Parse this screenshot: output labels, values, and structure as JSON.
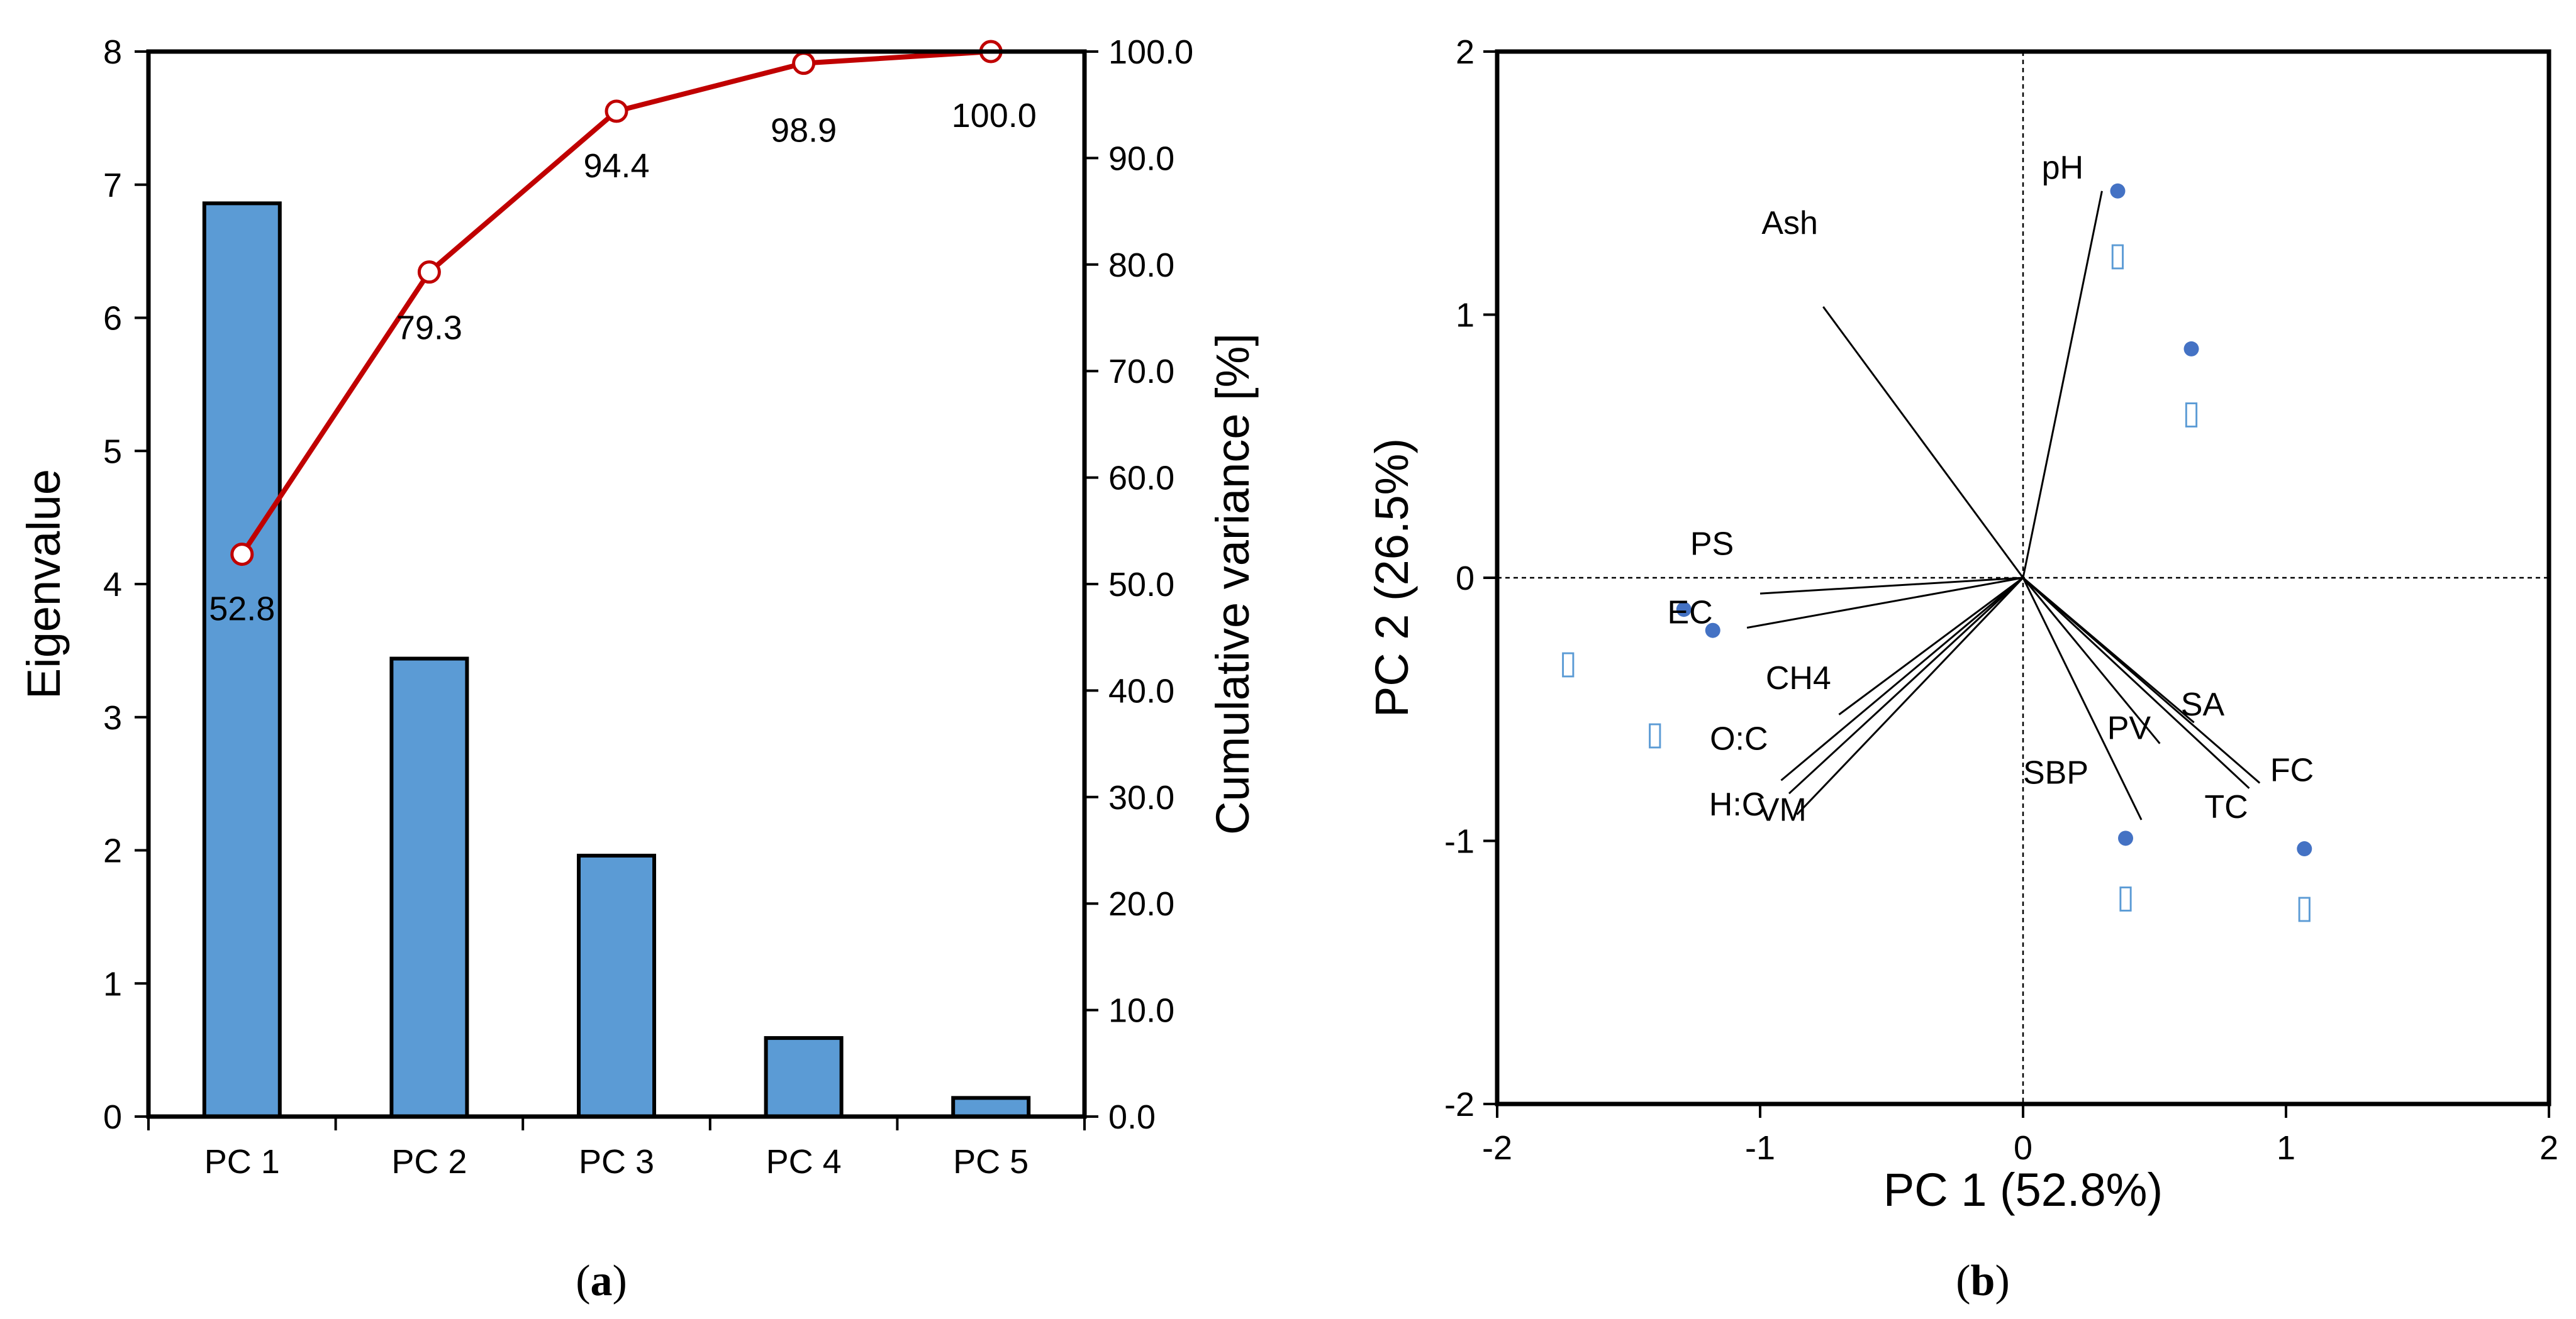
{
  "chart_data": [
    {
      "type": "bar",
      "panel_caption": {
        "open": "(",
        "letter": "a",
        "close": ")"
      },
      "categories": [
        "PC 1",
        "PC 2",
        "PC 3",
        "PC 4",
        "PC 5"
      ],
      "series": [
        {
          "name": "Eigenvalue",
          "axis": "left",
          "values": [
            6.86,
            3.44,
            1.96,
            0.59,
            0.14
          ],
          "color": "#5b9bd5"
        },
        {
          "name": "Cumulative variance",
          "type": "line",
          "axis": "right",
          "values": [
            52.8,
            79.3,
            94.4,
            98.9,
            100.0
          ],
          "labels": [
            "52.8",
            "79.3",
            "94.4",
            "98.9",
            "100.0"
          ],
          "color": "#c00000"
        }
      ],
      "ylabel": "Eigenvalue",
      "y2label": "Cumulative variance [%]",
      "ylim": [
        0,
        8
      ],
      "y2lim": [
        0,
        100
      ],
      "yticks": [
        "0",
        "1",
        "2",
        "3",
        "4",
        "5",
        "6",
        "7",
        "8"
      ],
      "y2ticks": [
        "0.0",
        "10.0",
        "20.0",
        "30.0",
        "40.0",
        "50.0",
        "60.0",
        "70.0",
        "80.0",
        "90.0",
        "100.0"
      ]
    },
    {
      "type": "scatter",
      "subtype": "biplot",
      "panel_caption": {
        "open": "(",
        "letter": "b",
        "close": ")"
      },
      "xlabel": "PC 1 (52.8%)",
      "ylabel": "PC 2 (26.5%)",
      "xlim": [
        -2,
        2
      ],
      "ylim": [
        -2,
        2
      ],
      "xticks": [
        "-2",
        "-1",
        "0",
        "1",
        "2"
      ],
      "yticks": [
        "-2",
        "-1",
        "0",
        "1",
        "2"
      ],
      "loadings": [
        {
          "label": "pH",
          "x": 0.3,
          "y": 1.47
        },
        {
          "label": "Ash",
          "x": -0.76,
          "y": 1.03
        },
        {
          "label": "PS",
          "x": -1.0,
          "y": -0.06
        },
        {
          "label": "EC",
          "x": -1.05,
          "y": -0.19
        },
        {
          "label": "CH4",
          "x": -0.7,
          "y": -0.52
        },
        {
          "label": "O:C",
          "x": -0.92,
          "y": -0.77
        },
        {
          "label": "H:C",
          "x": -0.89,
          "y": -0.82
        },
        {
          "label": "VM",
          "x": -0.86,
          "y": -0.9
        },
        {
          "label": "SA",
          "x": 0.65,
          "y": -0.55
        },
        {
          "label": "PV",
          "x": 0.52,
          "y": -0.63
        },
        {
          "label": "FC",
          "x": 0.9,
          "y": -0.78
        },
        {
          "label": "TC",
          "x": 0.86,
          "y": -0.8
        },
        {
          "label": "SBP",
          "x": 0.45,
          "y": -0.92
        }
      ],
      "scores": [
        {
          "x": 0.36,
          "y": 1.47,
          "label": "▯",
          "label_dx": 0.0,
          "label_dy": -0.24
        },
        {
          "x": 0.64,
          "y": 0.87,
          "label": "▯",
          "label_dx": 0.0,
          "label_dy": -0.24
        },
        {
          "x": -1.29,
          "y": -0.12,
          "label": "▯",
          "label_dx": -0.44,
          "label_dy": -0.2
        },
        {
          "x": -1.18,
          "y": -0.2,
          "label": "▯",
          "label_dx": -0.22,
          "label_dy": -0.39
        },
        {
          "x": 0.39,
          "y": -0.99,
          "label": "▯",
          "label_dx": 0.0,
          "label_dy": -0.22
        },
        {
          "x": 1.07,
          "y": -1.03,
          "label": "▯",
          "label_dx": 0.0,
          "label_dy": -0.22
        }
      ],
      "point_color": "#4472c4"
    }
  ]
}
